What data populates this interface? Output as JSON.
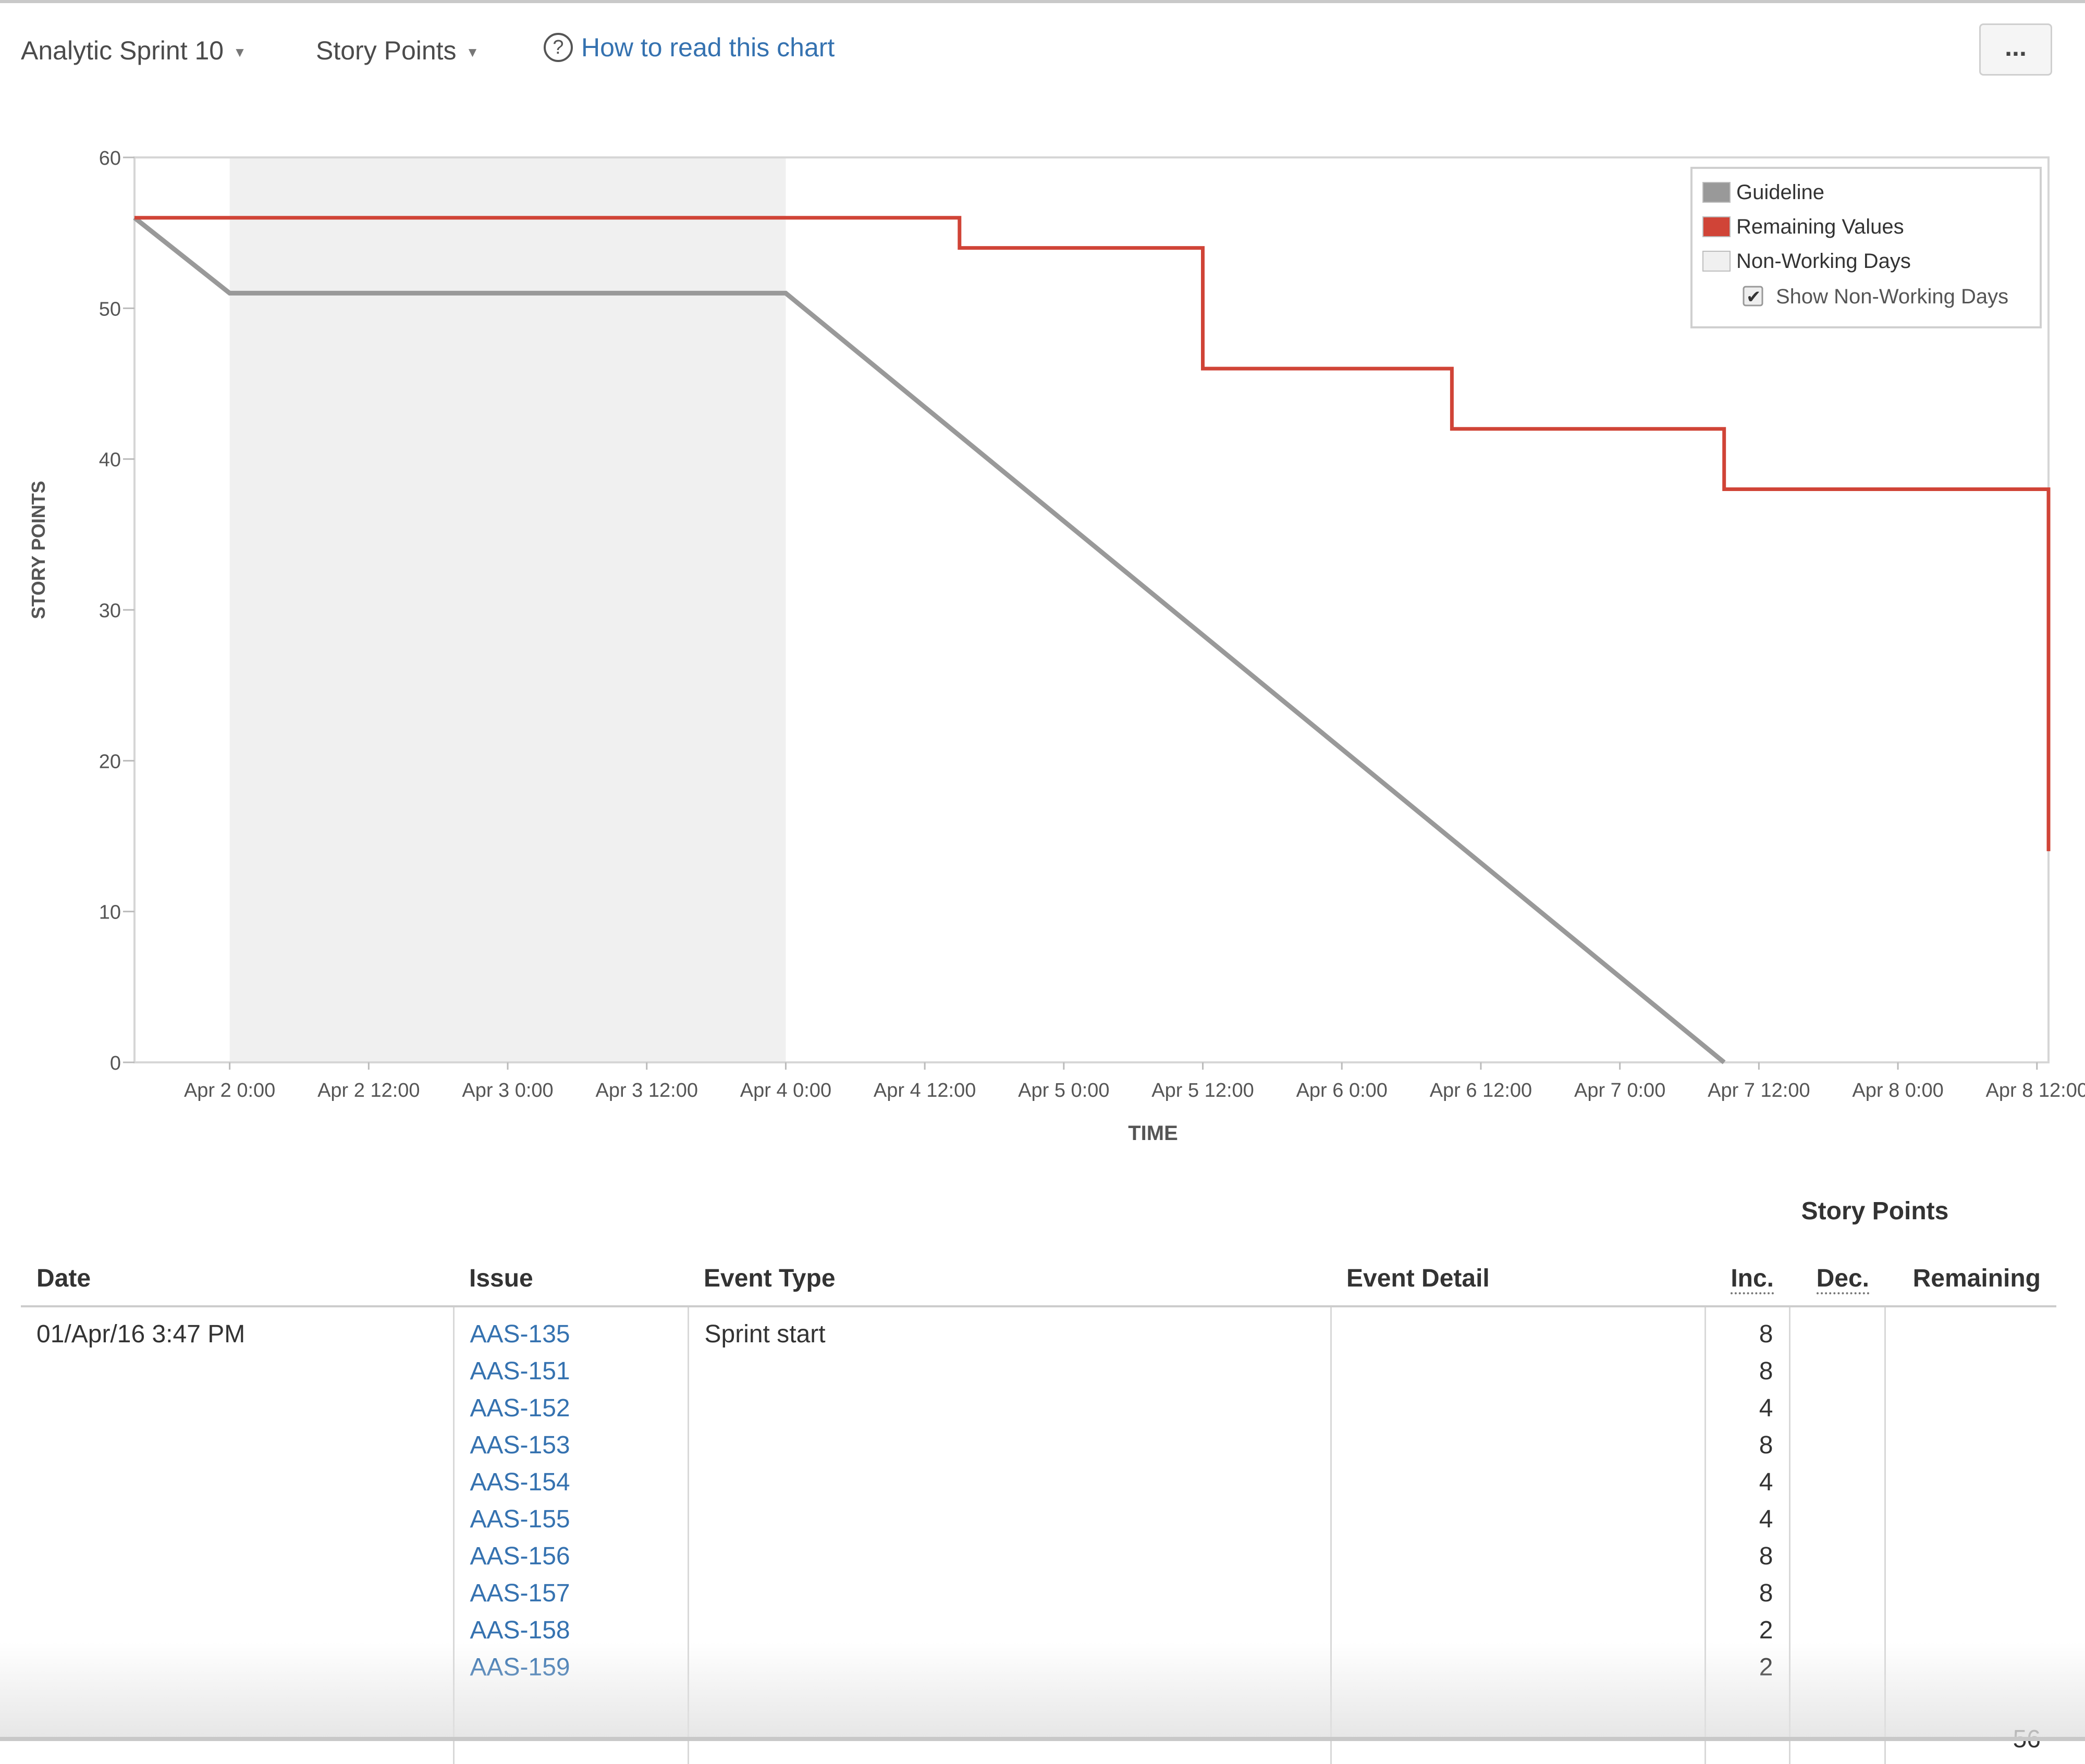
{
  "toolbar": {
    "sprint_label": "Analytic Sprint 10",
    "stat_label": "Story Points",
    "help_icon": "question-circle-icon",
    "help_link": "How to read this chart",
    "more_label": "..."
  },
  "chart_data": {
    "type": "line",
    "title": "",
    "xlabel": "TIME",
    "ylabel": "STORY POINTS",
    "ylim": [
      0,
      60
    ],
    "yticks": [
      "0",
      "10",
      "20",
      "30",
      "40",
      "50",
      "60"
    ],
    "xlim": [
      "Apr 1 3:47 PM",
      "Apr 8 13:00"
    ],
    "xticks": [
      "Apr 2 0:00",
      "Apr 2 12:00",
      "Apr 3 0:00",
      "Apr 3 12:00",
      "Apr 4 0:00",
      "Apr 4 12:00",
      "Apr 5 0:00",
      "Apr 5 12:00",
      "Apr 6 0:00",
      "Apr 6 12:00",
      "Apr 7 0:00",
      "Apr 7 12:00",
      "Apr 8 0:00",
      "Apr 8 12:00"
    ],
    "non_working_period": [
      "Apr 2 0:00",
      "Apr 4 0:00"
    ],
    "legend": {
      "placement": "top-right",
      "entries": [
        {
          "label": "Guideline",
          "color": "#999999"
        },
        {
          "label": "Remaining Values",
          "color": "#d04437"
        },
        {
          "label": "Non-Working Days",
          "color": "#f0f0f0"
        }
      ],
      "checkbox_label": "Show Non-Working Days",
      "checkbox_checked": true
    },
    "series": [
      {
        "name": "Guideline",
        "color": "#999999",
        "points": [
          [
            "Apr 1 3:47 PM",
            56
          ],
          [
            "Apr 2 0:00",
            51
          ],
          [
            "Apr 4 0:00",
            51
          ],
          [
            "Apr 7 9:00",
            0
          ]
        ]
      },
      {
        "name": "Remaining Values",
        "color": "#d04437",
        "points": [
          [
            "Apr 1 3:47 PM",
            56
          ],
          [
            "Apr 4 15:00",
            56
          ],
          [
            "Apr 4 15:00",
            54
          ],
          [
            "Apr 5 12:00",
            54
          ],
          [
            "Apr 5 12:00",
            46
          ],
          [
            "Apr 6 9:30",
            46
          ],
          [
            "Apr 6 9:30",
            42
          ],
          [
            "Apr 7 9:00",
            42
          ],
          [
            "Apr 7 9:00",
            38
          ],
          [
            "Apr 8 13:00",
            38
          ],
          [
            "Apr 8 13:00",
            14
          ]
        ]
      }
    ]
  },
  "table": {
    "group_header": "Story Points",
    "headers": {
      "date": "Date",
      "issue": "Issue",
      "event_type": "Event Type",
      "event_detail": "Event Detail",
      "inc": "Inc.",
      "dec": "Dec.",
      "remaining": "Remaining"
    },
    "row": {
      "date": "01/Apr/16 3:47 PM",
      "event_type": "Sprint start",
      "event_detail": "",
      "issues": [
        "AAS-135",
        "AAS-151",
        "AAS-152",
        "AAS-153",
        "AAS-154",
        "AAS-155",
        "AAS-156",
        "AAS-157",
        "AAS-158",
        "AAS-159"
      ],
      "inc": [
        "8",
        "8",
        "4",
        "8",
        "4",
        "4",
        "8",
        "8",
        "2",
        "2"
      ],
      "dec": "",
      "remaining": "56"
    }
  }
}
